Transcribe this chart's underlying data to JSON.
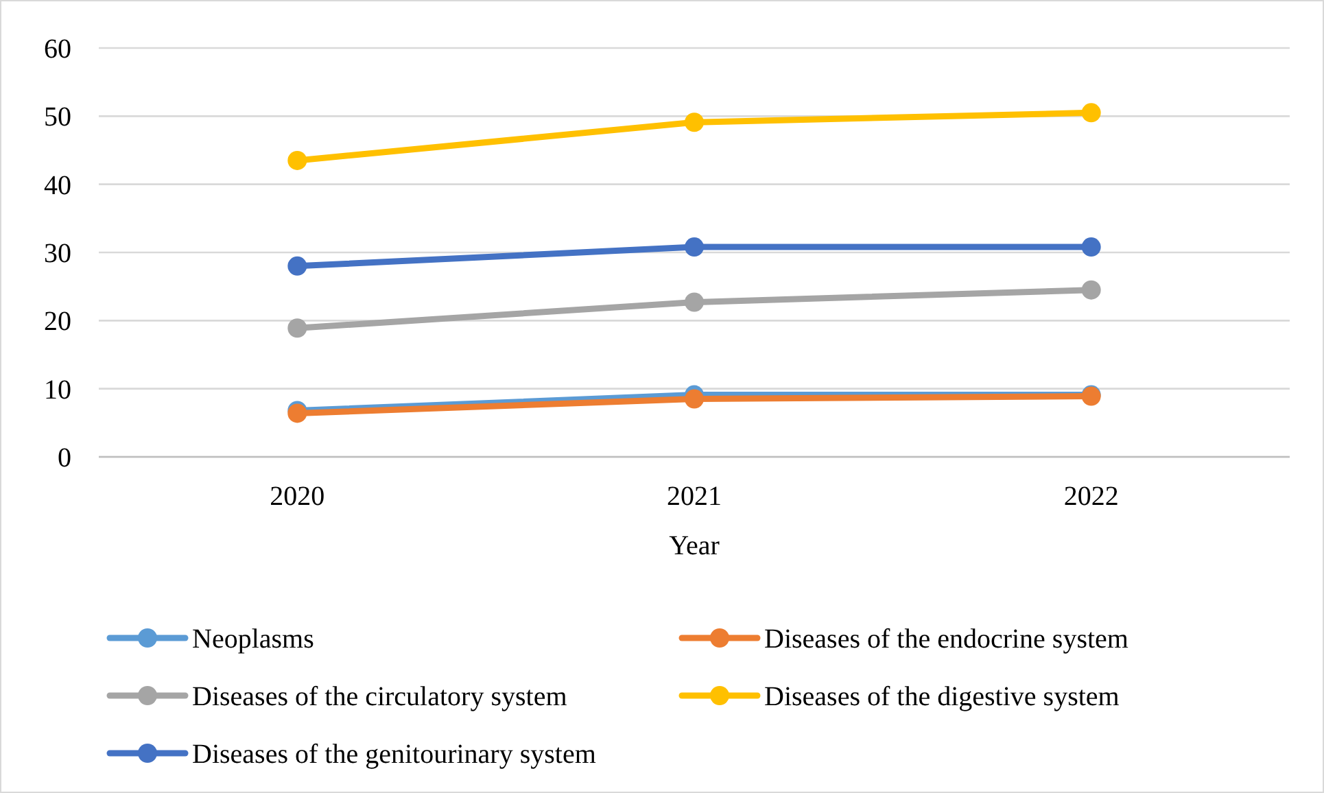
{
  "chart_data": {
    "type": "line",
    "xlabel": "Year",
    "categories": [
      "2020",
      "2021",
      "2022"
    ],
    "series": [
      {
        "name": "Neoplasms",
        "color": "#5b9bd5",
        "values": [
          6.8,
          9.1,
          9.1
        ]
      },
      {
        "name": "Diseases of the endocrine system",
        "color": "#ed7d31",
        "values": [
          6.4,
          8.5,
          8.9
        ]
      },
      {
        "name": "Diseases of the circulatory system",
        "color": "#a5a5a5",
        "values": [
          18.9,
          22.7,
          24.5
        ]
      },
      {
        "name": "Diseases of the digestive system",
        "color": "#ffc000",
        "values": [
          43.5,
          49.1,
          50.5
        ]
      },
      {
        "name": "Diseases of the genitourinary system",
        "color": "#4472c4",
        "values": [
          28.0,
          30.8,
          30.8
        ]
      }
    ],
    "ylim": [
      0,
      60
    ],
    "yticks": [
      0,
      10,
      20,
      30,
      40,
      50,
      60
    ],
    "grid": "y",
    "legend": "bottom",
    "marker": "circle",
    "line_style": "solid"
  }
}
